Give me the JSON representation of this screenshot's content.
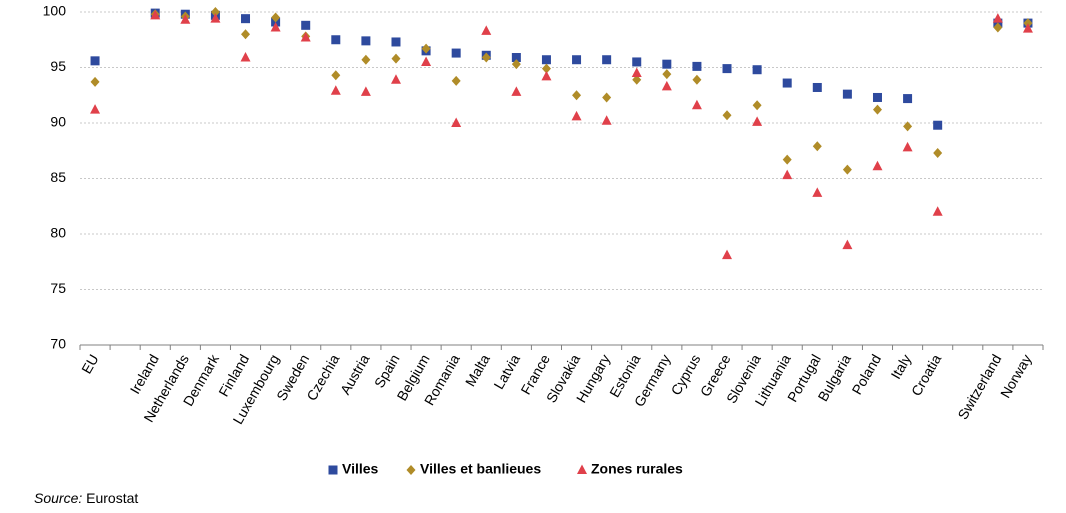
{
  "chart_data": {
    "type": "scatter",
    "categories": [
      "EU",
      "",
      "Ireland",
      "Netherlands",
      "Denmark",
      "Finland",
      "Luxembourg",
      "Sweden",
      "Czechia",
      "Austria",
      "Spain",
      "Belgium",
      "Romania",
      "Malta",
      "Latvia",
      "France",
      "Slovakia",
      "Hungary",
      "Estonia",
      "Germany",
      "Cyprus",
      "Greece",
      "Slovenia",
      "Lithuania",
      "Portugal",
      "Bulgaria",
      "Poland",
      "Italy",
      "Croatia",
      "",
      "Switzerland",
      "Norway"
    ],
    "ylim": [
      70,
      100
    ],
    "yticks": [
      70,
      75,
      80,
      85,
      90,
      95,
      100
    ],
    "grid": true,
    "legend_position": "bottom",
    "series": [
      {
        "name": "Villes",
        "color": "#2e4a9e",
        "marker": "square",
        "values": [
          95.6,
          null,
          99.9,
          99.8,
          99.7,
          99.4,
          99.1,
          98.8,
          97.5,
          97.4,
          97.3,
          96.5,
          96.3,
          96.1,
          95.9,
          95.7,
          95.7,
          95.7,
          95.5,
          95.3,
          95.1,
          94.9,
          94.8,
          93.6,
          93.2,
          92.6,
          92.3,
          92.2,
          89.8,
          null,
          99.0,
          99.0
        ]
      },
      {
        "name": "Villes et banlieues",
        "color": "#b08c28",
        "marker": "diamond",
        "values": [
          93.7,
          null,
          99.8,
          99.6,
          100.0,
          98.0,
          99.5,
          97.8,
          94.3,
          95.7,
          95.8,
          96.7,
          93.8,
          95.9,
          95.3,
          94.9,
          92.5,
          92.3,
          93.9,
          94.4,
          93.9,
          90.7,
          91.6,
          86.7,
          87.9,
          85.8,
          91.2,
          89.7,
          87.3,
          null,
          98.6,
          99.0
        ]
      },
      {
        "name": "Zones rurales",
        "color": "#e0404a",
        "marker": "triangle",
        "values": [
          91.2,
          null,
          99.7,
          99.3,
          99.4,
          95.9,
          98.6,
          97.7,
          92.9,
          92.8,
          93.9,
          95.5,
          90.0,
          98.3,
          92.8,
          94.2,
          90.6,
          90.2,
          94.5,
          93.3,
          91.6,
          78.1,
          90.1,
          85.3,
          83.7,
          79.0,
          86.1,
          87.8,
          82.0,
          null,
          99.4,
          98.5
        ]
      }
    ]
  },
  "source_label": "Source:",
  "source_text": " Eurostat"
}
